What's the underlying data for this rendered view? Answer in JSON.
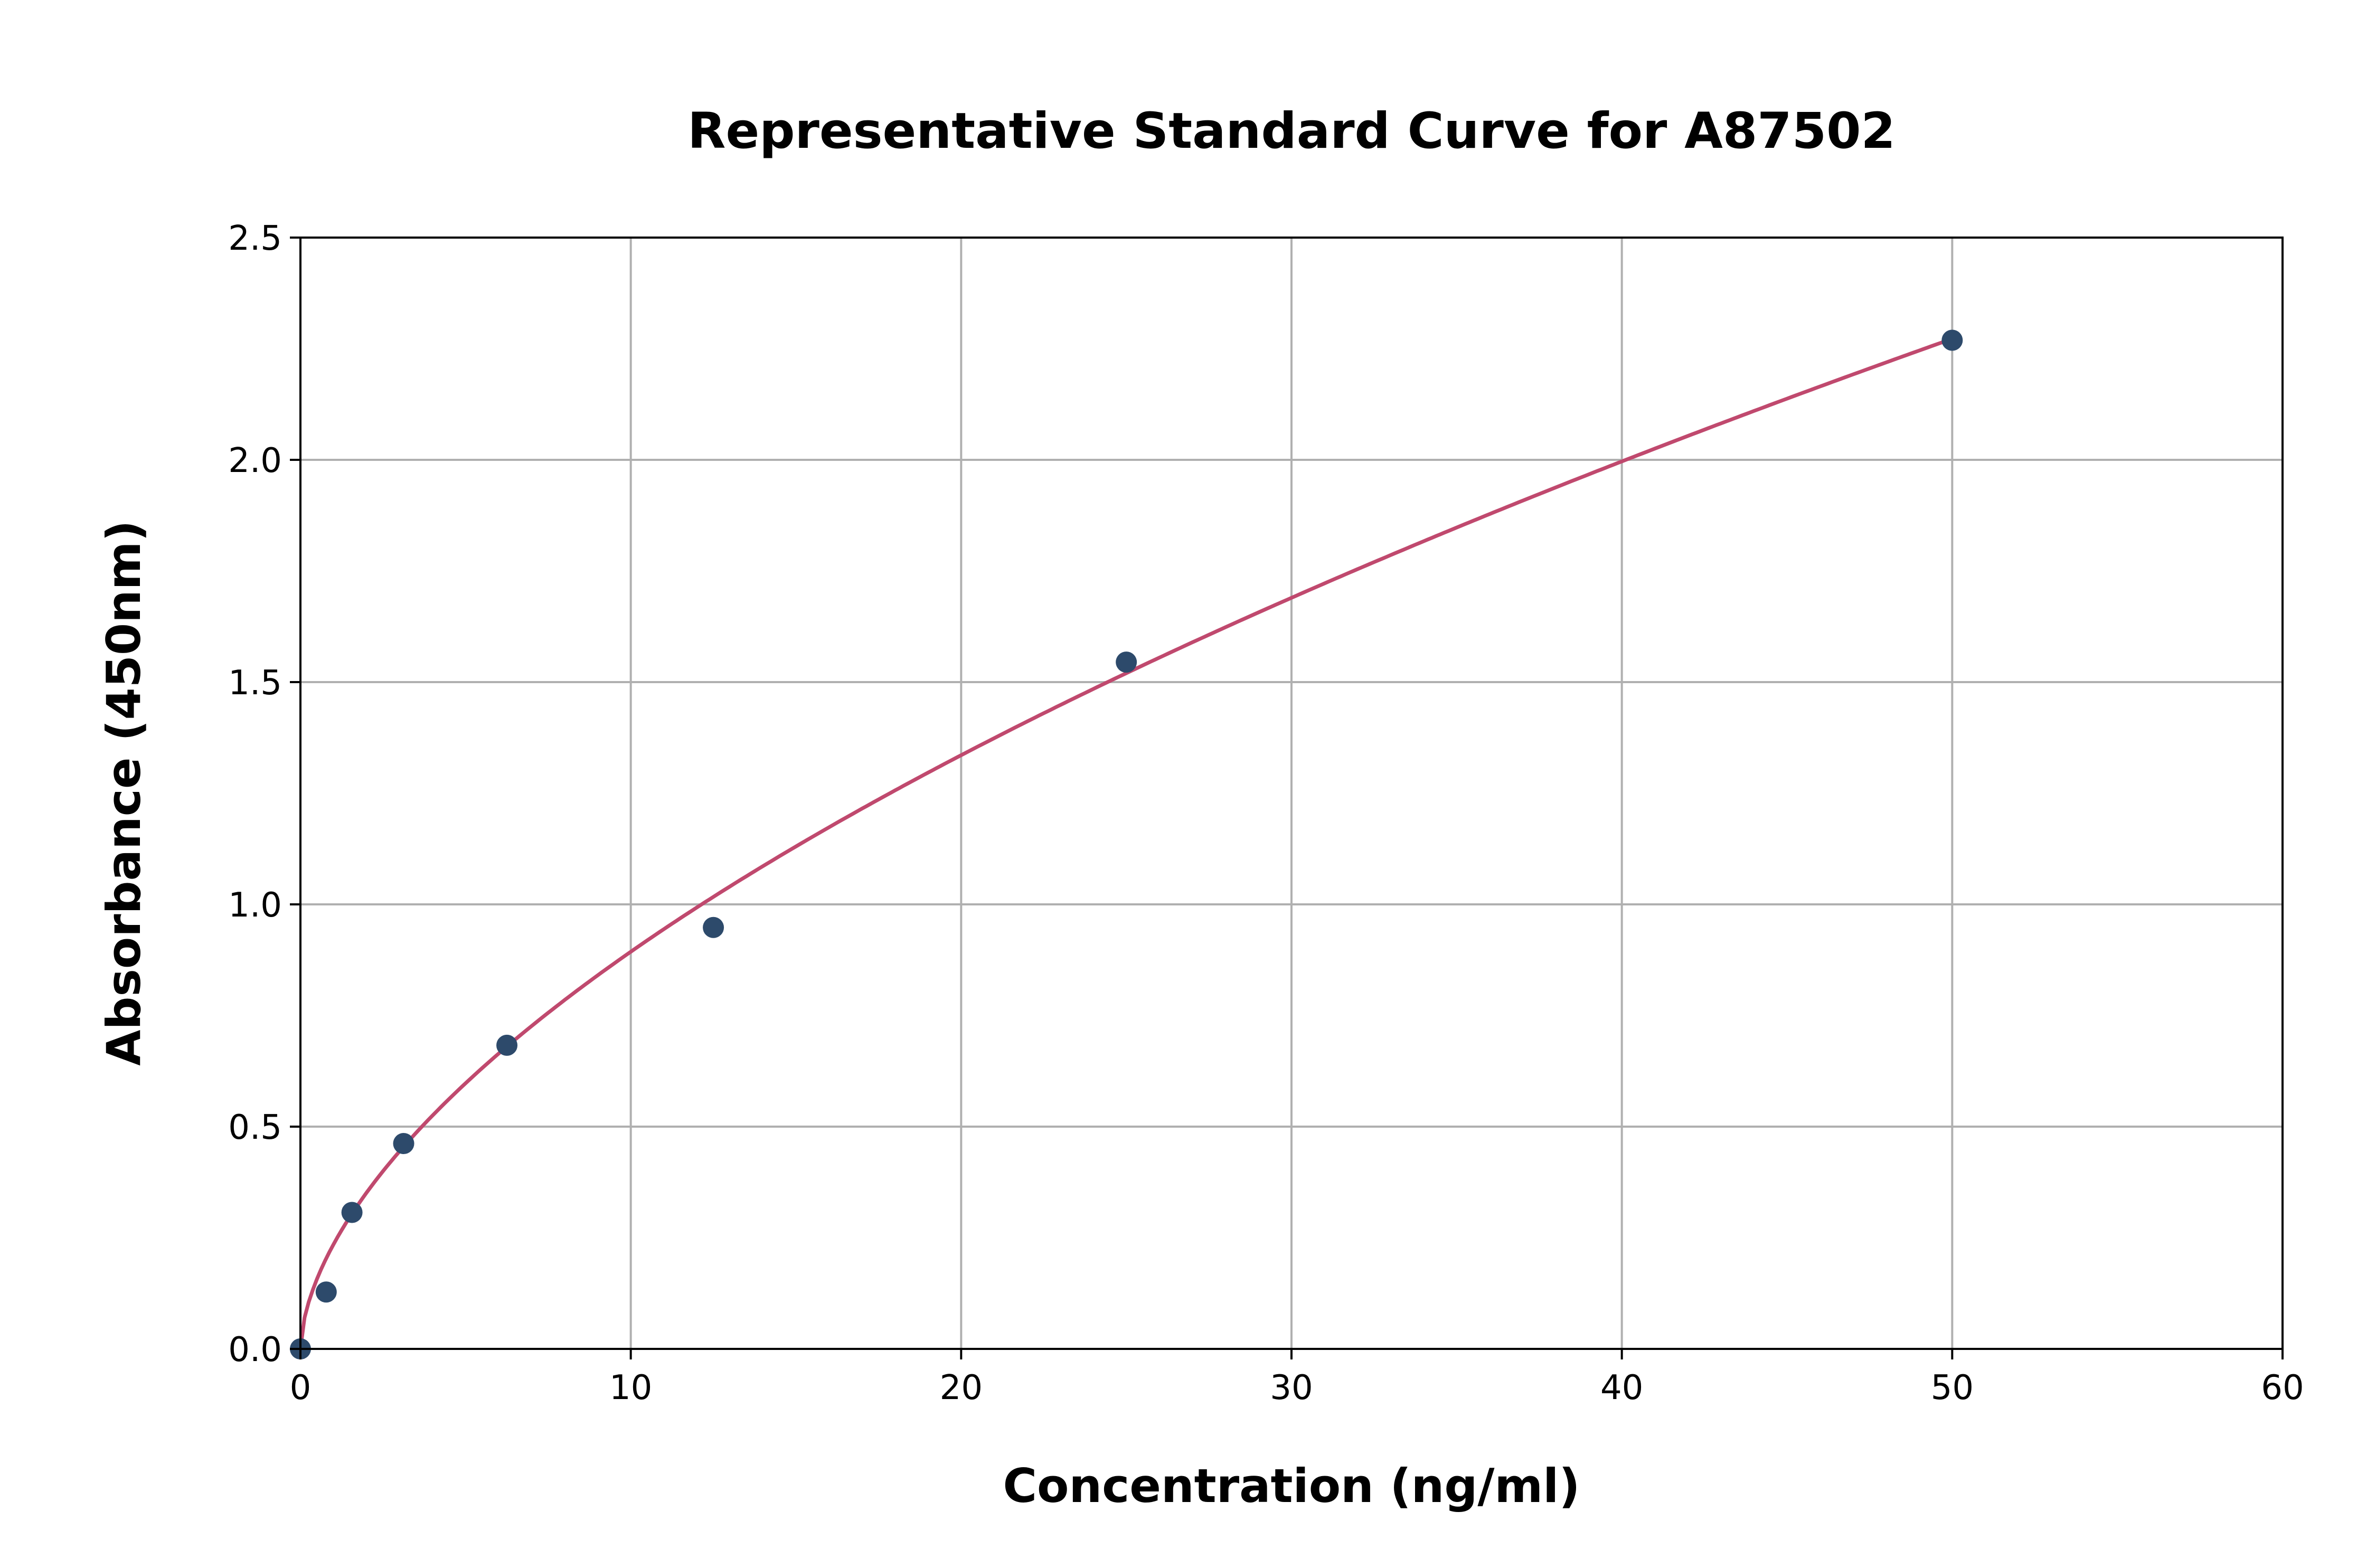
{
  "chart_data": {
    "type": "scatter",
    "title": "Representative Standard Curve for A87502",
    "xlabel": "Concentration (ng/ml)",
    "ylabel": "Absorbance (450nm)",
    "xlim": [
      0,
      60
    ],
    "ylim": [
      0,
      2.5
    ],
    "xticks": [
      "0",
      "10",
      "20",
      "30",
      "40",
      "50",
      "60"
    ],
    "yticks": [
      "0.0",
      "0.5",
      "1.0",
      "1.5",
      "2.0",
      "2.5"
    ],
    "grid": true,
    "points": {
      "x": [
        0,
        0.78,
        1.56,
        3.125,
        6.25,
        12.5,
        25,
        50
      ],
      "y": [
        0.0,
        0.128,
        0.307,
        0.462,
        0.683,
        0.948,
        1.545,
        2.269
      ]
    },
    "fit_curve": {
      "model": "power",
      "a": 0.235,
      "b": 0.58,
      "x_range": [
        0,
        50
      ]
    },
    "colors": {
      "points": "#2d4a6b",
      "curve": "#c0496e",
      "grid": "#b0b0b0"
    }
  }
}
